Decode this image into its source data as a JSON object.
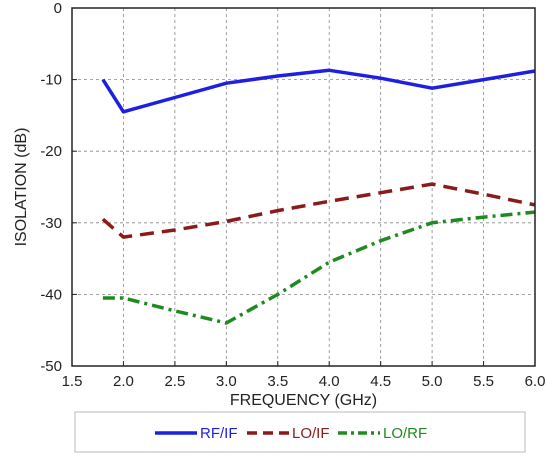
{
  "chart_data": {
    "type": "line",
    "title": "",
    "xlabel": "FREQUENCY (GHz)",
    "ylabel": "ISOLATION (dB)",
    "xlim": [
      1.5,
      6.0
    ],
    "ylim": [
      -50,
      0
    ],
    "xticks": [
      1.5,
      2.0,
      2.5,
      3.0,
      3.5,
      4.0,
      4.5,
      5.0,
      5.5,
      6.0
    ],
    "xtick_labels": [
      "1.5",
      "2.0",
      "2.5",
      "3.0",
      "3.5",
      "4.0",
      "4.5",
      "5.0",
      "5.5",
      "6.0"
    ],
    "yticks": [
      0,
      -10,
      -20,
      -30,
      -40,
      -50
    ],
    "ytick_labels": [
      "0",
      "-10",
      "-20",
      "-30",
      "-40",
      "-50"
    ],
    "grid": true,
    "legend_position": "bottom",
    "series": [
      {
        "name": "RF/IF",
        "color": "#1f1fe0",
        "style": "solid",
        "x": [
          1.8,
          2.0,
          2.5,
          3.0,
          3.5,
          4.0,
          4.5,
          5.0,
          5.5,
          6.0
        ],
        "y": [
          -10.0,
          -14.5,
          -12.5,
          -10.5,
          -9.5,
          -8.7,
          -9.8,
          -11.2,
          -10.0,
          -8.8
        ]
      },
      {
        "name": "LO/IF",
        "color": "#8b1a1a",
        "style": "dashed",
        "x": [
          1.8,
          2.0,
          2.5,
          3.0,
          3.5,
          4.0,
          4.5,
          5.0,
          5.5,
          6.0
        ],
        "y": [
          -29.5,
          -32.0,
          -31.0,
          -29.8,
          -28.3,
          -27.0,
          -25.8,
          -24.6,
          -26.0,
          -27.5
        ]
      },
      {
        "name": "LO/RF",
        "color": "#1f8a1f",
        "style": "dashdot",
        "x": [
          1.8,
          2.0,
          2.5,
          3.0,
          3.5,
          4.0,
          4.5,
          5.0,
          5.5,
          6.0
        ],
        "y": [
          -40.5,
          -40.5,
          -42.3,
          -44.0,
          -40.0,
          -35.5,
          -32.5,
          -30.0,
          -29.2,
          -28.5
        ]
      }
    ]
  }
}
